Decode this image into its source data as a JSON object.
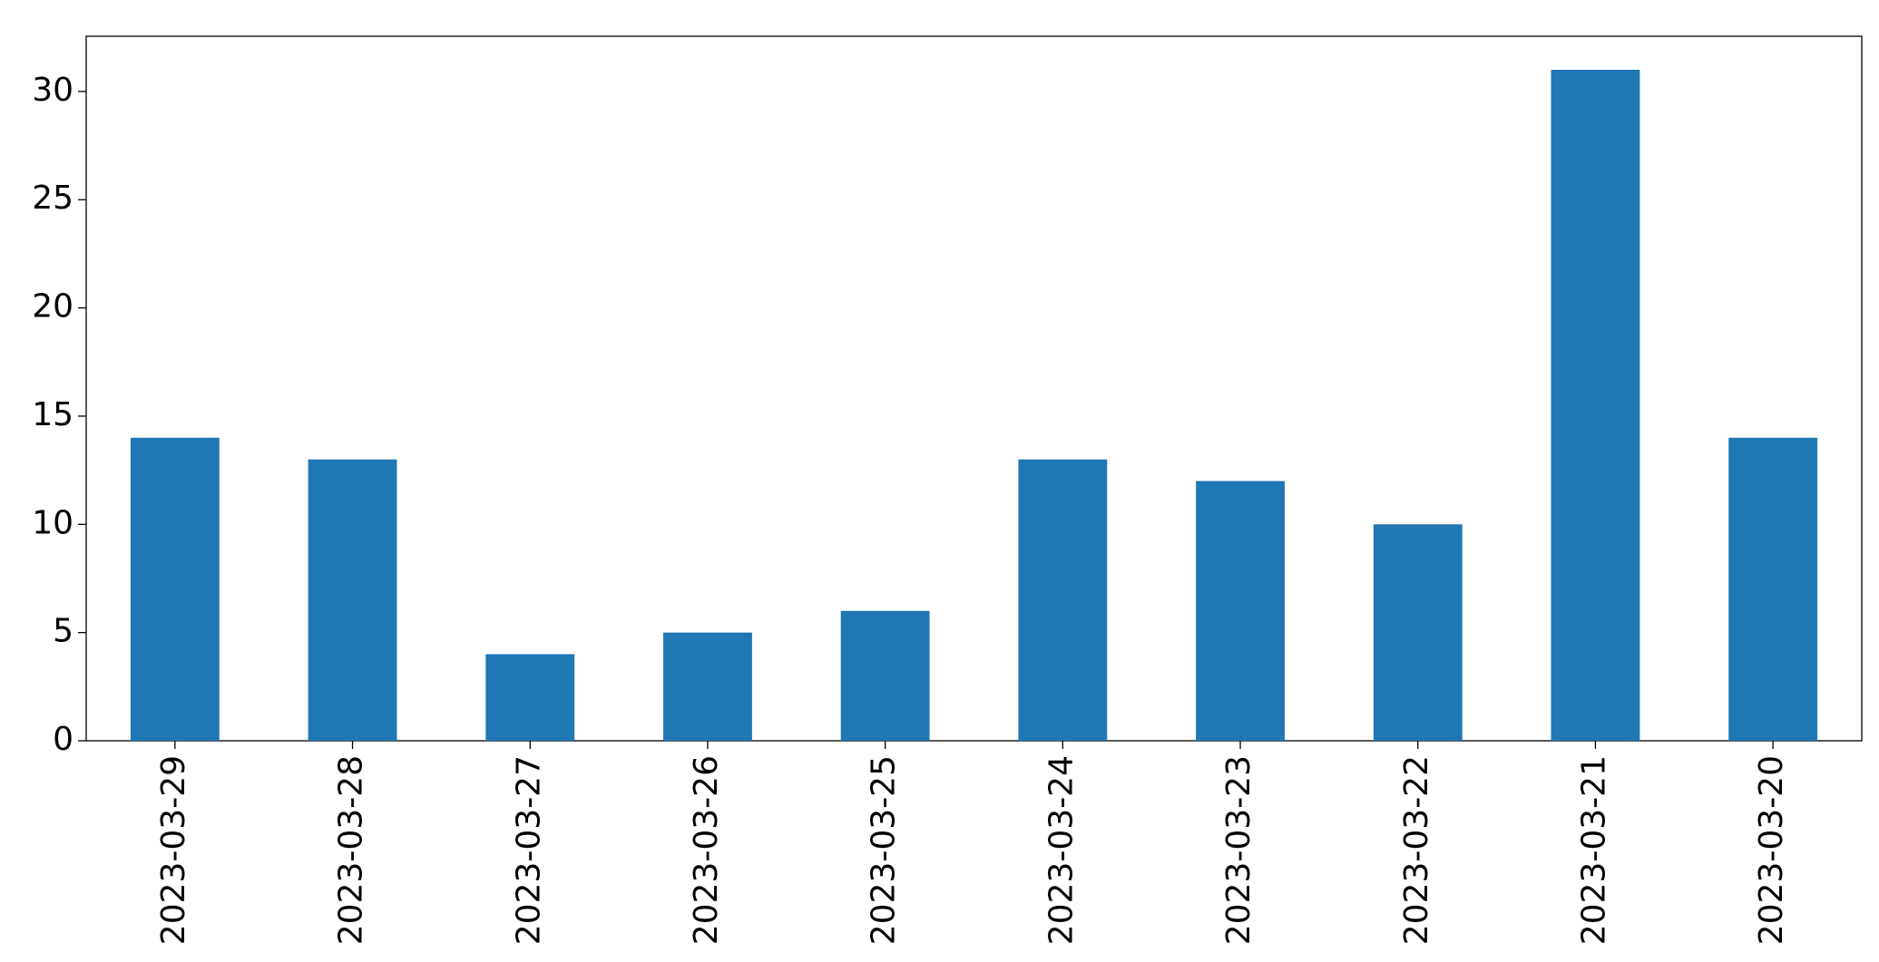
{
  "chart_data": {
    "type": "bar",
    "categories": [
      "2023-03-29",
      "2023-03-28",
      "2023-03-27",
      "2023-03-26",
      "2023-03-25",
      "2023-03-24",
      "2023-03-23",
      "2023-03-22",
      "2023-03-21",
      "2023-03-20"
    ],
    "values": [
      14,
      13,
      4,
      5,
      6,
      13,
      12,
      10,
      31,
      14
    ],
    "color": "#1f77b4",
    "ylim": [
      0,
      32.55
    ],
    "yticks": [
      0,
      5,
      10,
      15,
      20,
      25,
      30
    ],
    "grid": false
  }
}
